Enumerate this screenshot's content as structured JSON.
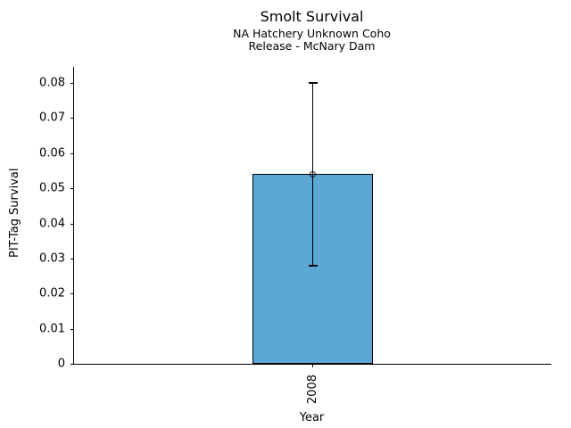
{
  "chart_data": {
    "type": "bar",
    "title": "Smolt Survival",
    "subtitle_line1": "NA Hatchery Unknown Coho",
    "subtitle_line2": "Release - McNary Dam",
    "xlabel": "Year",
    "ylabel": "PIT-Tag Survival",
    "categories": [
      "2008"
    ],
    "series": [
      {
        "name": "PIT-Tag Survival",
        "values": [
          0.054
        ]
      }
    ],
    "error_bars": [
      {
        "low": 0.028,
        "high": 0.08
      }
    ],
    "marker": "open-circle",
    "ylim": [
      0,
      0.0846
    ],
    "yticks": [
      {
        "value": 0,
        "label": "0"
      },
      {
        "value": 0.01,
        "label": "0.01"
      },
      {
        "value": 0.02,
        "label": "0.02"
      },
      {
        "value": 0.03,
        "label": "0.03"
      },
      {
        "value": 0.04,
        "label": "0.04"
      },
      {
        "value": 0.05,
        "label": "0.05"
      },
      {
        "value": 0.06,
        "label": "0.06"
      },
      {
        "value": 0.07,
        "label": "0.07"
      },
      {
        "value": 0.08,
        "label": "0.08"
      }
    ],
    "grid": false,
    "legend": "none",
    "bar_color": "#5BA8D6",
    "bar_edge_color": "#000000",
    "error_color": "#000000",
    "background_color": "#FFFFFF"
  }
}
